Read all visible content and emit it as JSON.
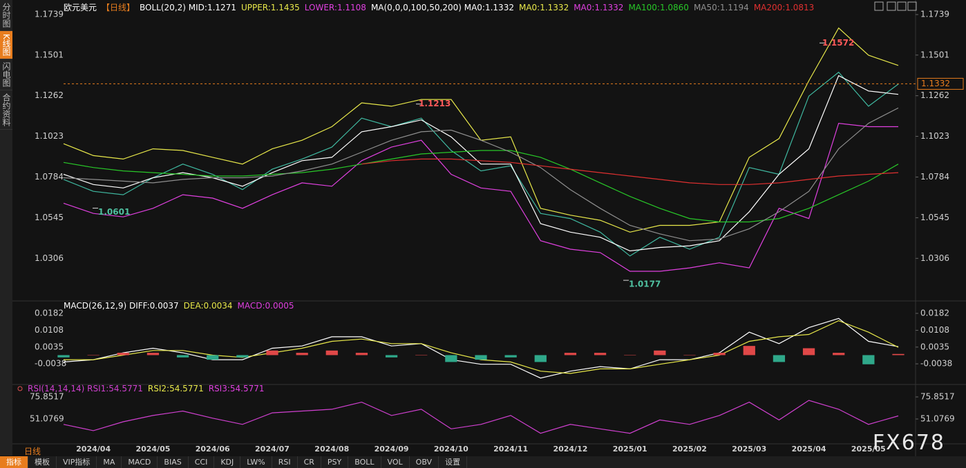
{
  "sidebar": [
    "分时图",
    "K线图",
    "闪电图",
    "合约资料"
  ],
  "sidebar_active": 1,
  "chart_data": [
    {
      "type": "line",
      "title": "欧元美元",
      "period": "【日线】",
      "categories": [
        null,
        "2024/04",
        null,
        "2024/05",
        null,
        "2024/06",
        null,
        "2024/07",
        null,
        "2024/08",
        null,
        "2024/09",
        null,
        "2024/10",
        null,
        "2024/11",
        null,
        "2024/12",
        null,
        "2025/01",
        null,
        "2025/02",
        null,
        "2025/03",
        null,
        "2025/04",
        null,
        "2025/05",
        null
      ],
      "ylim": [
        1.008,
        1.1784
      ],
      "yticks": [
        1.1739,
        1.1501,
        1.1262,
        1.1023,
        1.0784,
        1.0545,
        1.0306
      ],
      "grid": false,
      "last_price": 1.1332,
      "last_price_color": "#e87d1e",
      "highs": [
        1.1572,
        1.1213
      ],
      "high_color": "#ff5a5a",
      "lows": [
        1.0601,
        1.0177
      ],
      "low_color": "#4fc0a0",
      "series": [
        {
          "color": "#3fb8a0",
          "values": [
            1.077,
            1.07,
            1.068,
            1.078,
            1.086,
            1.08,
            1.071,
            1.083,
            1.089,
            1.096,
            1.113,
            1.108,
            1.113,
            1.094,
            1.082,
            1.085,
            1.057,
            1.054,
            1.046,
            1.032,
            1.043,
            1.036,
            1.043,
            1.084,
            1.08,
            1.126,
            1.14,
            1.12,
            1.133
          ]
        },
        {
          "name": "BOLL(20,2) MID:1.1271",
          "color": "#ffffff",
          "values": [
            1.08,
            1.074,
            1.072,
            1.078,
            1.081,
            1.078,
            1.073,
            1.081,
            1.088,
            1.09,
            1.105,
            1.108,
            1.112,
            1.102,
            1.086,
            1.086,
            1.051,
            1.046,
            1.043,
            1.035,
            1.037,
            1.038,
            1.041,
            1.058,
            1.08,
            1.095,
            1.138,
            1.129,
            1.127
          ]
        },
        {
          "name": "UPPER:1.1435",
          "color": "#e8e84a",
          "values": [
            1.098,
            1.091,
            1.089,
            1.095,
            1.094,
            1.09,
            1.086,
            1.095,
            1.1,
            1.108,
            1.122,
            1.12,
            1.124,
            1.124,
            1.1,
            1.102,
            1.06,
            1.056,
            1.053,
            1.046,
            1.05,
            1.05,
            1.052,
            1.09,
            1.101,
            1.135,
            1.166,
            1.15,
            1.144
          ]
        },
        {
          "name": "LOWER:1.1108",
          "color": "#e040e0",
          "values": [
            1.063,
            1.057,
            1.055,
            1.06,
            1.068,
            1.066,
            1.06,
            1.068,
            1.075,
            1.073,
            1.088,
            1.096,
            1.1,
            1.08,
            1.072,
            1.07,
            1.041,
            1.036,
            1.034,
            1.023,
            1.023,
            1.025,
            1.028,
            1.025,
            1.06,
            1.054,
            1.11,
            1.108,
            1.108
          ]
        },
        {
          "name": "MA100:1.0860",
          "color": "#28c828",
          "values": [
            1.087,
            1.084,
            1.082,
            1.081,
            1.08,
            1.079,
            1.079,
            1.08,
            1.081,
            1.083,
            1.086,
            1.089,
            1.092,
            1.093,
            1.094,
            1.094,
            1.09,
            1.083,
            1.075,
            1.067,
            1.06,
            1.054,
            1.052,
            1.052,
            1.054,
            1.06,
            1.068,
            1.076,
            1.086
          ]
        },
        {
          "name": "MA50:1.1194",
          "color": "#909090",
          "values": [
            1.078,
            1.077,
            1.076,
            1.075,
            1.077,
            1.078,
            1.078,
            1.079,
            1.082,
            1.086,
            1.093,
            1.1,
            1.105,
            1.106,
            1.1,
            1.093,
            1.084,
            1.071,
            1.06,
            1.05,
            1.045,
            1.041,
            1.042,
            1.048,
            1.058,
            1.07,
            1.095,
            1.11,
            1.119
          ]
        },
        {
          "name": "MA200:1.0813",
          "color": "#e03030",
          "values": [
            null,
            null,
            null,
            null,
            null,
            null,
            null,
            null,
            null,
            null,
            1.086,
            1.088,
            1.089,
            1.089,
            1.088,
            1.087,
            1.085,
            1.083,
            1.081,
            1.079,
            1.077,
            1.075,
            1.074,
            1.074,
            1.075,
            1.077,
            1.079,
            1.08,
            1.081
          ]
        }
      ],
      "indicator_labels": [
        "MA(0,0,0,100,50,200) MA0:1.1332",
        "MA0:1.1332",
        "MA0:1.1332"
      ],
      "indicator_label_colors": [
        "#ffffff",
        "#e8e84a",
        "#e040e0"
      ]
    },
    {
      "type": "line",
      "ylim": [
        -0.0122,
        0.0209
      ],
      "yticks": [
        0.0182,
        0.0108,
        0.0035,
        -0.0038
      ],
      "grid": false,
      "series": [
        {
          "name": "MACD(26,12,9) DIFF:0.0037",
          "color": "#ffffff",
          "values": [
            -0.003,
            -0.002,
            0.001,
            0.003,
            0.001,
            -0.002,
            -0.002,
            0.003,
            0.004,
            0.008,
            0.008,
            0.004,
            0.005,
            -0.002,
            -0.004,
            -0.004,
            -0.01,
            -0.007,
            -0.005,
            -0.006,
            -0.002,
            -0.002,
            0.001,
            0.01,
            0.005,
            0.012,
            0.016,
            0.006,
            0.0037
          ]
        },
        {
          "name": "DEA:0.0034",
          "color": "#e8e84a",
          "values": [
            -0.002,
            -0.002,
            0.0,
            0.002,
            0.002,
            0.0,
            -0.001,
            0.001,
            0.003,
            0.006,
            0.007,
            0.005,
            0.005,
            0.001,
            -0.002,
            -0.003,
            -0.007,
            -0.008,
            -0.006,
            -0.006,
            -0.004,
            -0.002,
            0.0,
            0.006,
            0.008,
            0.009,
            0.015,
            0.01,
            0.0034
          ]
        },
        {
          "name": "MACD:0.0005",
          "type": "bar",
          "color": "#e040e0",
          "up_color": "#e04848",
          "down_color": "#2fa88a",
          "values": [
            -0.001,
            0,
            0.001,
            0.001,
            -0.001,
            -0.002,
            -0.001,
            0.002,
            0.001,
            0.002,
            0.001,
            -0.001,
            0,
            -0.003,
            -0.002,
            -0.001,
            -0.003,
            0.001,
            0.001,
            0,
            0.002,
            0,
            0.001,
            0.004,
            -0.003,
            0.003,
            0.001,
            -0.004,
            0.0005
          ]
        }
      ]
    },
    {
      "type": "line",
      "ylim": [
        25.5,
        81.3
      ],
      "yticks": [
        75.8517,
        51.0769
      ],
      "grid": false,
      "series": [
        {
          "name": "RSI(14,14,14) RSI1:54.5771",
          "color": "#d040d0",
          "values": [
            45,
            38,
            48,
            55,
            60,
            52,
            45,
            58,
            60,
            62,
            70,
            55,
            62,
            40,
            45,
            55,
            35,
            45,
            40,
            35,
            50,
            45,
            55,
            70,
            50,
            72,
            62,
            45,
            54.5771
          ]
        }
      ],
      "indicator_labels": [
        "RSI2:54.5771",
        "RSI3:54.5771"
      ],
      "indicator_label_colors": [
        "#e8e84a",
        "#e040e0"
      ]
    }
  ],
  "period_label": "日线",
  "tabs": [
    "指标",
    "模板",
    "VIP指标",
    "MA",
    "MACD",
    "BIAS",
    "CCI",
    "KDJ",
    "LW%",
    "RSI",
    "CR",
    "PSY",
    "BOLL",
    "VOL",
    "OBV",
    "设置"
  ],
  "tabs_active": 0,
  "watermark": "FX678"
}
